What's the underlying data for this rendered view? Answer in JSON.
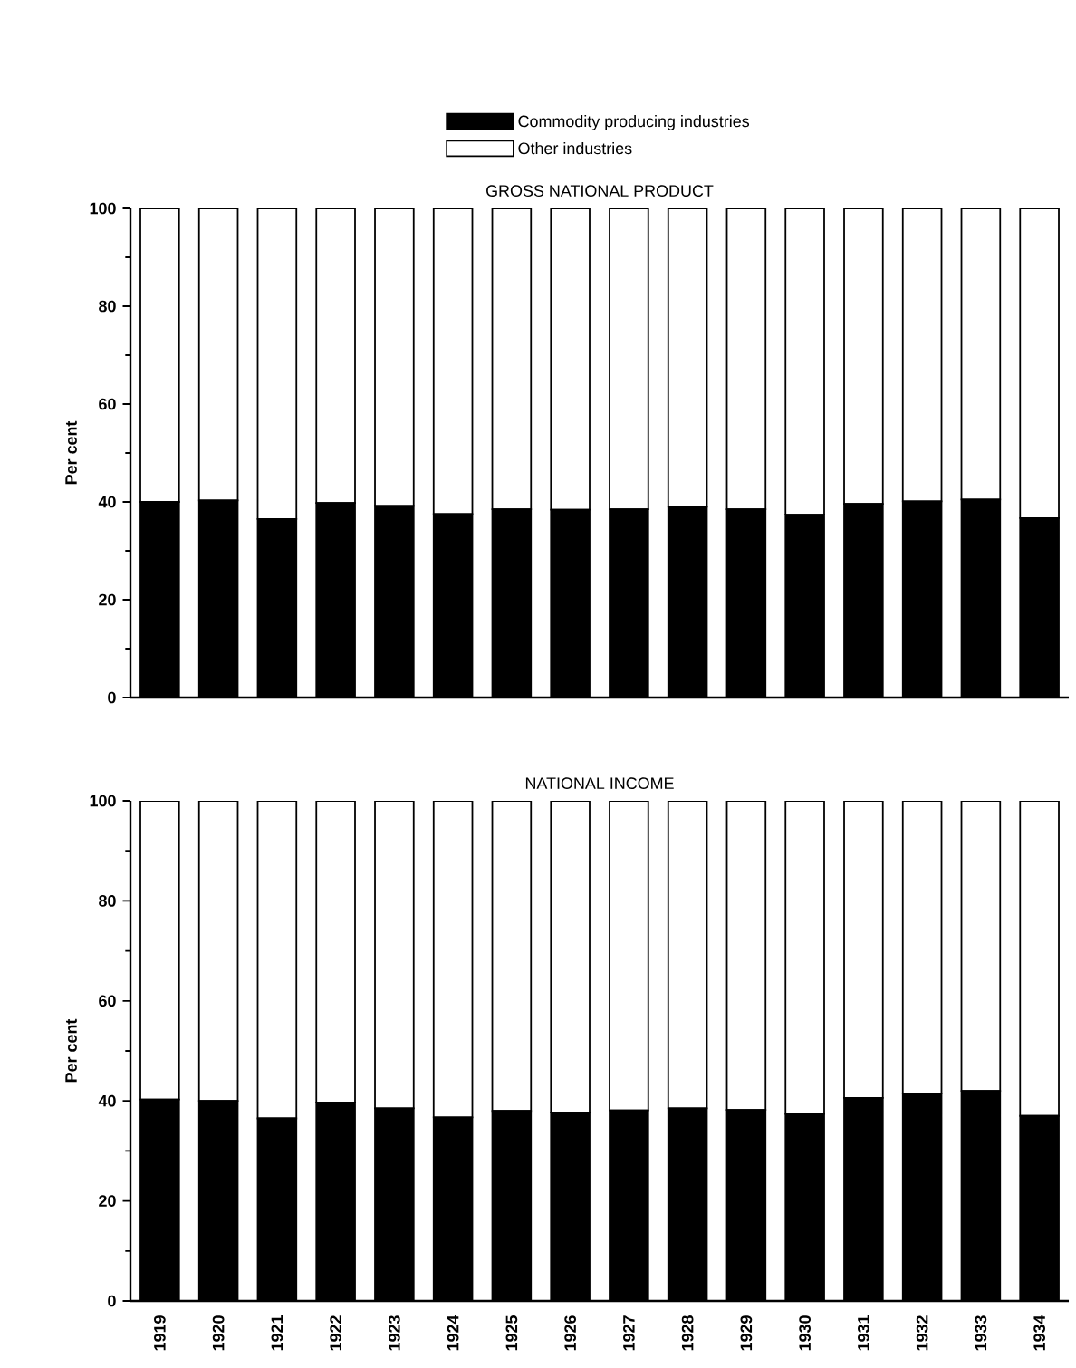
{
  "chart_data": [
    {
      "type": "bar",
      "title": "GROSS NATIONAL PRODUCT",
      "ylabel": "Per cent",
      "stacked": true,
      "legend": "top",
      "tick_labels": "y",
      "categories": [
        "1919",
        "1920",
        "1921",
        "1922",
        "1923",
        "1924",
        "1925",
        "1926",
        "1927",
        "1928",
        "1929",
        "1930",
        "1931",
        "1932",
        "1933",
        "1934"
      ],
      "series": [
        {
          "name": "Commodity producing industries",
          "color": "#000000",
          "values": [
            40,
            40.3,
            36.5,
            39.8,
            39.2,
            37.5,
            38.5,
            38.4,
            38.5,
            39,
            38.5,
            37.4,
            39.6,
            40.1,
            40.5,
            36.7
          ]
        },
        {
          "name": "Other industries",
          "color": "#ffffff",
          "values": [
            60,
            59.7,
            63.5,
            60.2,
            60.8,
            62.5,
            61.5,
            61.6,
            61.5,
            61,
            61.5,
            62.6,
            60.4,
            59.9,
            59.5,
            63.3
          ]
        }
      ],
      "ylim": [
        0,
        100
      ],
      "yticks": [
        0,
        20,
        40,
        60,
        80,
        100
      ]
    },
    {
      "type": "bar",
      "title": "NATIONAL INCOME",
      "ylabel": "Per cent",
      "stacked": true,
      "categories": [
        "1919",
        "1920",
        "1921",
        "1922",
        "1923",
        "1924",
        "1925",
        "1926",
        "1927",
        "1928",
        "1929",
        "1930",
        "1931",
        "1932",
        "1933",
        "1934"
      ],
      "series": [
        {
          "color": "#000000",
          "values": [
            40.3,
            40,
            36.5,
            39.7,
            38.5,
            36.7,
            38,
            37.7,
            38.1,
            38.5,
            38.2,
            37.4,
            40.6,
            41.5,
            42,
            37
          ]
        },
        {
          "color": "#ffffff",
          "values": [
            59.7,
            60,
            63.5,
            60.3,
            61.5,
            63.3,
            62,
            62.3,
            61.9,
            61.5,
            61.8,
            62.6,
            59.4,
            58.5,
            58,
            63
          ]
        }
      ],
      "ylim": [
        0,
        100
      ],
      "yticks": [
        0,
        20,
        40,
        60,
        80,
        100
      ]
    }
  ]
}
